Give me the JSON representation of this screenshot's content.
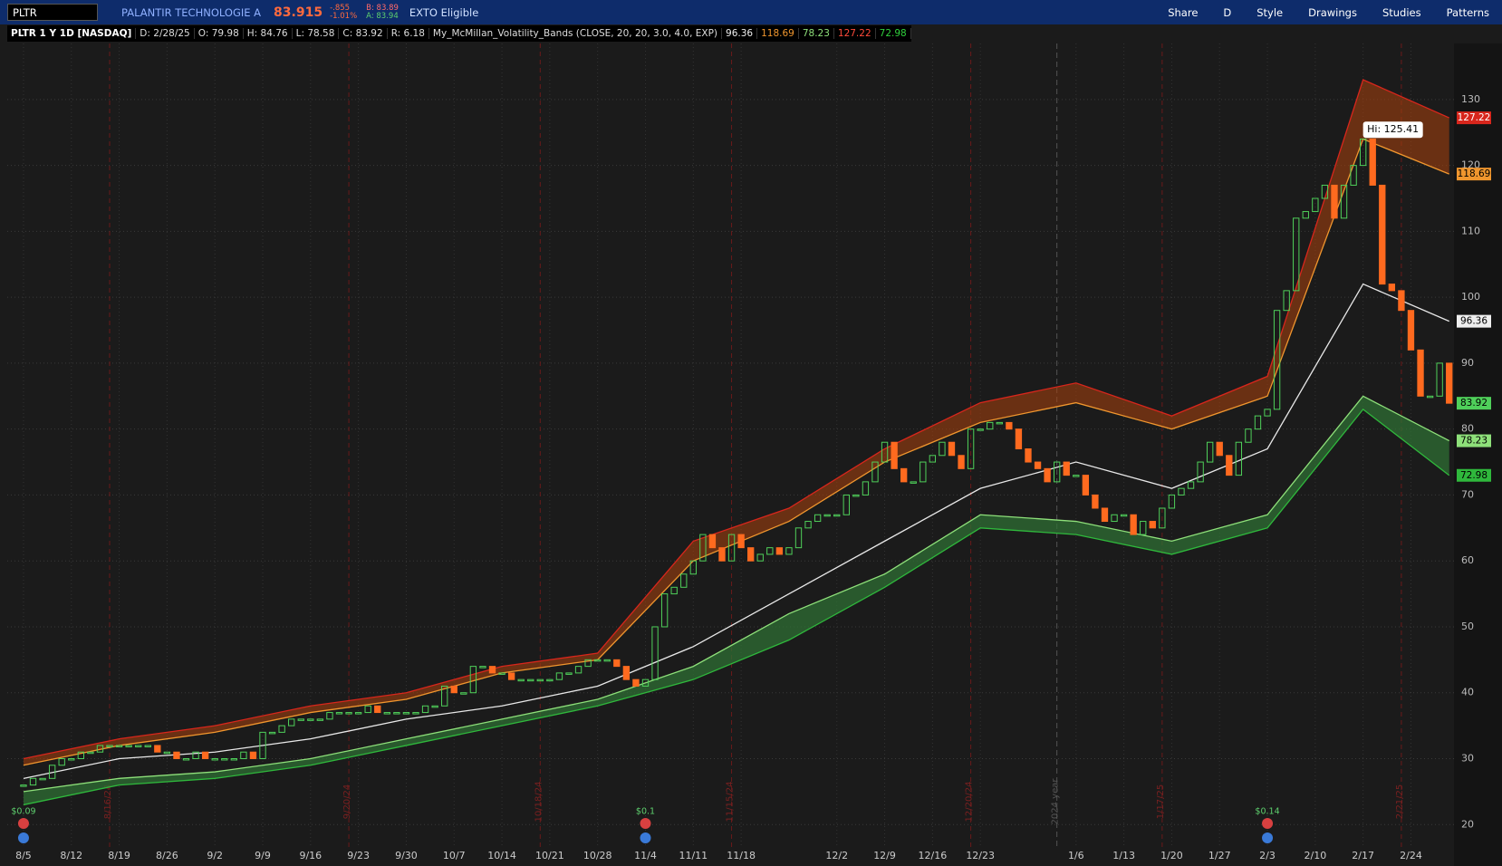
{
  "toolbar": {
    "symbol": "PLTR",
    "company": "PALANTIR TECHNOLOGIE A",
    "last": "83.915",
    "change": "-.855",
    "change_pct": "-1.01%",
    "bid": "B: 83.89",
    "ask": "A: 83.94",
    "badge": "EXTO Eligible",
    "buttons": [
      "Share",
      "D",
      "Style",
      "Drawings",
      "Studies",
      "Patterns"
    ]
  },
  "legend": {
    "title": "PLTR 1 Y 1D [NASDAQ]",
    "date": "D: 2/28/25",
    "open": "O: 79.98",
    "high": "H: 84.76",
    "low": "L: 78.58",
    "close": "C: 83.92",
    "range": "R: 6.18",
    "study": "My_McMillan_Volatility_Bands (CLOSE, 20, 20, 3.0, 4.0, EXP)"
  },
  "chart_data": {
    "type": "candlestick",
    "up_color": "#4fd05a",
    "down_color": "#ff6a1f",
    "closes": [
      26,
      27,
      27,
      29,
      30,
      30,
      31,
      31,
      32,
      32,
      32,
      32,
      32,
      32,
      31,
      31,
      30,
      30,
      31,
      30,
      30,
      30,
      30,
      31,
      30,
      34,
      34,
      35,
      36,
      36,
      36,
      36,
      37,
      37,
      37,
      37,
      38,
      37,
      37,
      37,
      37,
      37,
      38,
      38,
      41,
      40,
      40,
      44,
      44,
      43,
      43,
      42,
      42,
      42,
      42,
      42,
      43,
      43,
      44,
      45,
      45,
      45,
      44,
      42,
      41,
      42,
      50,
      55,
      56,
      58,
      60,
      64,
      62,
      60,
      64,
      62,
      60,
      61,
      62,
      61,
      62,
      65,
      66,
      67,
      67,
      67,
      70,
      70,
      72,
      75,
      78,
      74,
      72,
      72,
      75,
      76,
      78,
      76,
      74,
      80,
      80,
      81,
      81,
      80,
      77,
      75,
      74,
      72,
      75,
      73,
      73,
      70,
      68,
      66,
      67,
      67,
      64,
      66,
      65,
      68,
      70,
      71,
      72,
      75,
      78,
      76,
      73,
      78,
      80,
      82,
      83,
      98,
      101,
      112,
      113,
      115,
      117,
      112,
      117,
      120,
      124,
      117,
      102,
      101,
      98,
      92,
      85,
      85,
      90,
      83.92
    ],
    "bands": {
      "x": [
        0,
        10,
        20,
        30,
        40,
        50,
        60,
        70,
        80,
        90,
        100,
        110,
        120,
        130,
        140,
        149
      ],
      "middle": {
        "color": "#e8e8e8",
        "values": [
          27,
          30,
          31,
          33,
          36,
          38,
          41,
          47,
          55,
          63,
          71,
          75,
          71,
          77,
          102,
          96.36
        ]
      },
      "upper_outer": {
        "color": "#d8261c",
        "values": [
          30,
          33,
          35,
          38,
          40,
          44,
          46,
          63,
          68,
          77,
          84,
          87,
          82,
          88,
          133,
          127.22
        ]
      },
      "upper_inner": {
        "color": "#f0962e",
        "values": [
          29,
          32,
          34,
          37,
          39,
          43,
          45,
          60,
          66,
          75,
          81,
          84,
          80,
          85,
          124,
          118.69
        ]
      },
      "lower_inner": {
        "color": "#8ee07a",
        "values": [
          25,
          27,
          28,
          30,
          33,
          36,
          39,
          44,
          52,
          58,
          67,
          66,
          63,
          67,
          85,
          78.23
        ]
      },
      "lower_outer": {
        "color": "#2fb83c",
        "values": [
          23,
          26,
          27,
          29,
          32,
          35,
          38,
          42,
          48,
          56,
          65,
          64,
          61,
          65,
          83,
          72.98
        ]
      }
    },
    "high": {
      "value": 125.41,
      "label": "Hi: 125.41"
    },
    "dividends": [
      {
        "x": 0,
        "label": "$0.09"
      },
      {
        "x": 65,
        "label": "$0.1"
      },
      {
        "x": 130,
        "label": "$0.14"
      }
    ],
    "expirations": [
      {
        "x": 9,
        "label": "8/16/24"
      },
      {
        "x": 34,
        "label": "9/20/24"
      },
      {
        "x": 54,
        "label": "10/18/24"
      },
      {
        "x": 74,
        "label": "11/15/24"
      },
      {
        "x": 99,
        "label": "12/20/24"
      },
      {
        "x": 119,
        "label": "1/17/25"
      },
      {
        "x": 144,
        "label": "2/21/25"
      }
    ],
    "year_marker": {
      "x": 108,
      "label": "2024 year"
    },
    "xlim": [
      -1.7,
      149.5
    ],
    "xticks": [
      {
        "value": 0,
        "label": "8/5"
      },
      {
        "value": 5,
        "label": "8/12"
      },
      {
        "value": 10,
        "label": "8/19"
      },
      {
        "value": 15,
        "label": "8/26"
      },
      {
        "value": 20,
        "label": "9/2"
      },
      {
        "value": 25,
        "label": "9/9"
      },
      {
        "value": 30,
        "label": "9/16"
      },
      {
        "value": 35,
        "label": "9/23"
      },
      {
        "value": 40,
        "label": "9/30"
      },
      {
        "value": 45,
        "label": "10/7"
      },
      {
        "value": 50,
        "label": "10/14"
      },
      {
        "value": 55,
        "label": "10/21"
      },
      {
        "value": 60,
        "label": "10/28"
      },
      {
        "value": 65,
        "label": "11/4"
      },
      {
        "value": 70,
        "label": "11/11"
      },
      {
        "value": 75,
        "label": "11/18"
      },
      {
        "value": 85,
        "label": "12/2"
      },
      {
        "value": 90,
        "label": "12/9"
      },
      {
        "value": 95,
        "label": "12/16"
      },
      {
        "value": 100,
        "label": "12/23"
      },
      {
        "value": 110,
        "label": "1/6"
      },
      {
        "value": 115,
        "label": "1/13"
      },
      {
        "value": 120,
        "label": "1/20"
      },
      {
        "value": 125,
        "label": "1/27"
      },
      {
        "value": 130,
        "label": "2/3"
      },
      {
        "value": 135,
        "label": "2/10"
      },
      {
        "value": 140,
        "label": "2/17"
      },
      {
        "value": 145,
        "label": "2/24"
      }
    ],
    "ylim": [
      16.6,
      138.5
    ],
    "yticks": [
      20,
      30,
      40,
      50,
      60,
      70,
      80,
      90,
      100,
      110,
      120,
      130
    ],
    "grid": true
  }
}
